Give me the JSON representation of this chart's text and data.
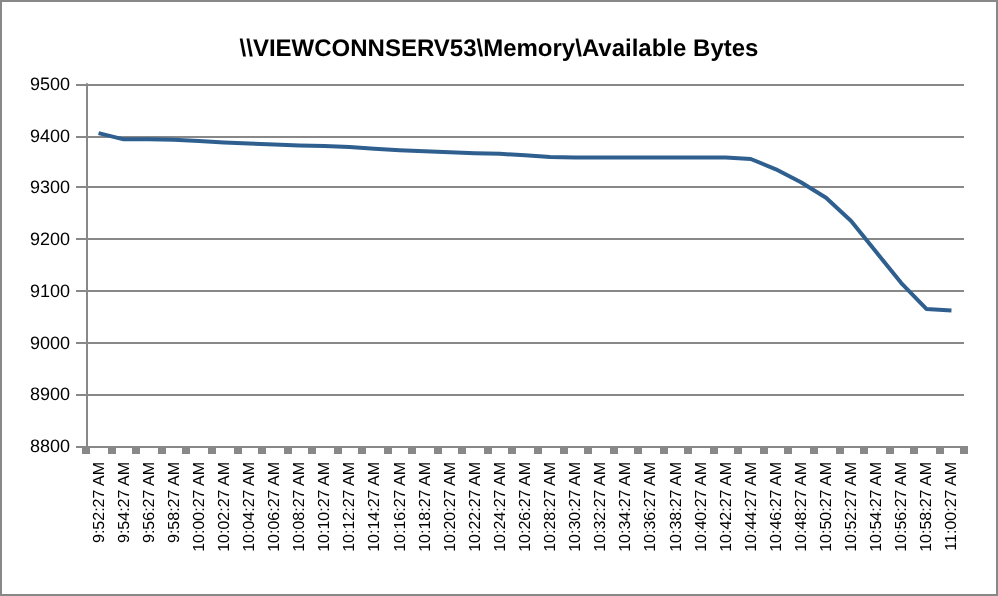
{
  "chart_data": {
    "type": "line",
    "title": "\\\\VIEWCONNSERV53\\Memory\\Available Bytes",
    "categories": [
      "9:52:27 AM",
      "9:54:27 AM",
      "9:56:27 AM",
      "9:58:27 AM",
      "10:00:27 AM",
      "10:02:27 AM",
      "10:04:27 AM",
      "10:06:27 AM",
      "10:08:27 AM",
      "10:10:27 AM",
      "10:12:27 AM",
      "10:14:27 AM",
      "10:16:27 AM",
      "10:18:27 AM",
      "10:20:27 AM",
      "10:22:27 AM",
      "10:24:27 AM",
      "10:26:27 AM",
      "10:28:27 AM",
      "10:30:27 AM",
      "10:32:27 AM",
      "10:34:27 AM",
      "10:36:27 AM",
      "10:38:27 AM",
      "10:40:27 AM",
      "10:42:27 AM",
      "10:44:27 AM",
      "10:46:27 AM",
      "10:48:27 AM",
      "10:50:27 AM",
      "10:52:27 AM",
      "10:54:27 AM",
      "10:56:27 AM",
      "10:58:27 AM",
      "11:00:27 AM"
    ],
    "series": [
      {
        "color": "#2e5f8f",
        "values": [
          9405,
          9393,
          9393,
          9392,
          9390,
          9387,
          9385,
          9383,
          9381,
          9380,
          9378,
          9375,
          9372,
          9370,
          9368,
          9366,
          9365,
          9362,
          9359,
          9358,
          9358,
          9358,
          9358,
          9358,
          9358,
          9358,
          9355,
          9335,
          9310,
          9280,
          9235,
          9175,
          9115,
          9065,
          9062
        ]
      }
    ],
    "ylim": [
      8800,
      9500
    ],
    "yticks": [
      8800,
      8900,
      9000,
      9100,
      9200,
      9300,
      9400,
      9500
    ],
    "grid": "y",
    "marker": "none"
  }
}
